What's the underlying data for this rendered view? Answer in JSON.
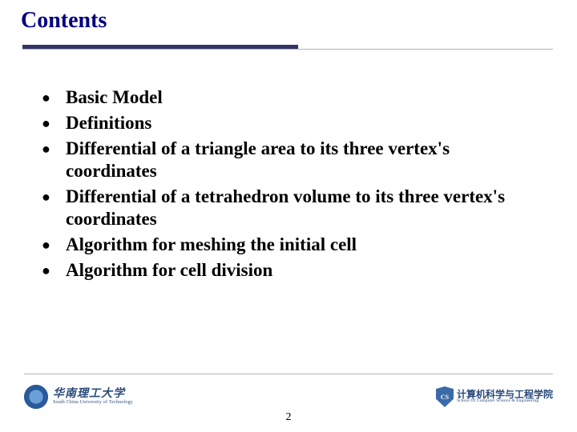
{
  "title": "Contents",
  "title_color": "#000080",
  "rule_color": "#333366",
  "bullets": [
    "Basic Model",
    "Definitions",
    "Differential of a triangle area to its three vertex's coordinates",
    "Differential of a tetrahedron volume to its three vertex's coordinates",
    "Algorithm for meshing the initial cell",
    "Algorithm for cell division"
  ],
  "page_number": "2",
  "footer_left": {
    "cn": "华南理工大学",
    "en": "South China University of Technology"
  },
  "footer_right": {
    "shield_text": "CS",
    "cn": "计算机科学与工程学院",
    "en": "School Of Computer Science & Engineering"
  }
}
